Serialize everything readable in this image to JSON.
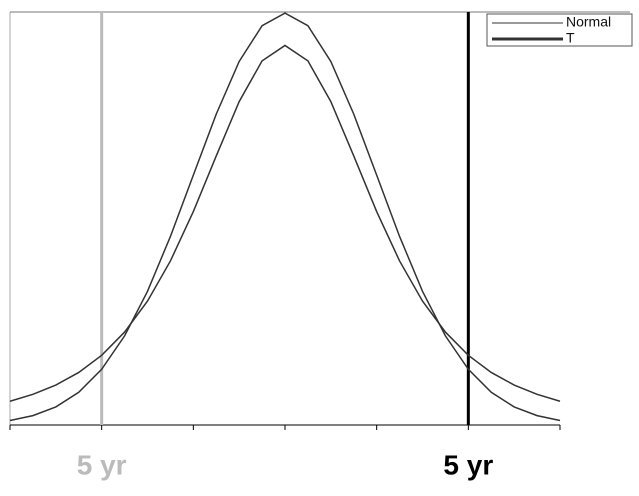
{
  "chart_data": {
    "type": "line",
    "x": [
      -3,
      -2.75,
      -2.5,
      -2.25,
      -2,
      -1.75,
      -1.5,
      -1.25,
      -1,
      -0.75,
      -0.5,
      -0.25,
      0,
      0.25,
      0.5,
      0.75,
      1,
      1.25,
      1.5,
      1.75,
      2,
      2.25,
      2.5,
      2.75,
      3
    ],
    "series": [
      {
        "name": "Normal",
        "color": "#333333",
        "values": [
          0.0044,
          0.0091,
          0.0175,
          0.0317,
          0.054,
          0.0863,
          0.1295,
          0.1826,
          0.242,
          0.3011,
          0.3521,
          0.3867,
          0.3989,
          0.3867,
          0.3521,
          0.3011,
          0.242,
          0.1826,
          0.1295,
          0.0863,
          0.054,
          0.0317,
          0.0175,
          0.0091,
          0.0044
        ]
      },
      {
        "name": "T",
        "color": "#333333",
        "values": [
          0.023,
          0.0297,
          0.0387,
          0.0509,
          0.0675,
          0.09,
          0.12,
          0.1589,
          0.2067,
          0.2606,
          0.3132,
          0.3527,
          0.3676,
          0.3527,
          0.3132,
          0.2606,
          0.2067,
          0.1589,
          0.12,
          0.09,
          0.0675,
          0.0509,
          0.0387,
          0.0297,
          0.023
        ]
      }
    ],
    "xlim": [
      -3,
      3
    ],
    "ylim": [
      0,
      0.4
    ],
    "xticks": [
      -3,
      -2,
      -1,
      0,
      1,
      2,
      3
    ],
    "legend": "top-right",
    "vlines": [
      {
        "x": -2,
        "color": "#bbbbbb",
        "label": "5 yr"
      },
      {
        "x": 2,
        "color": "#000000",
        "label": "5 yr"
      }
    ]
  }
}
